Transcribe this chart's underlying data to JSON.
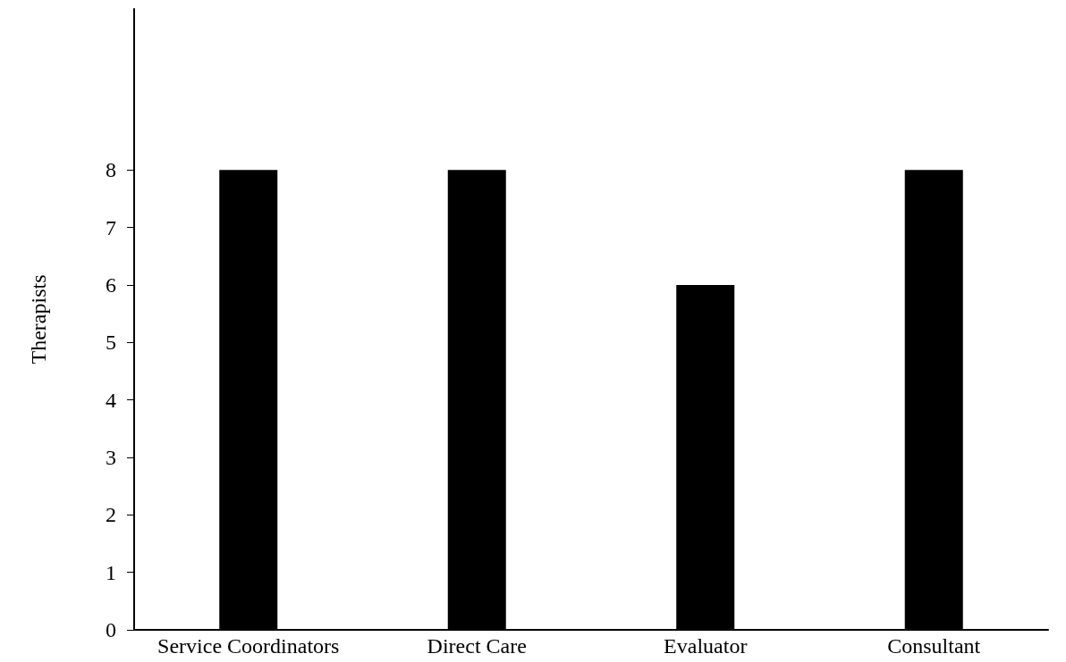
{
  "chart_data": {
    "type": "bar",
    "ylabel": "Therapists",
    "categories": [
      "Service Coordinators",
      "Direct Care",
      "Evaluator",
      "Consultant"
    ],
    "values": [
      8,
      8,
      6,
      8
    ],
    "color": "#000000",
    "ylim": [
      0,
      10.8
    ],
    "yticks": [
      0,
      1,
      2,
      3,
      4,
      5,
      6,
      7,
      8
    ],
    "grid": false
  }
}
